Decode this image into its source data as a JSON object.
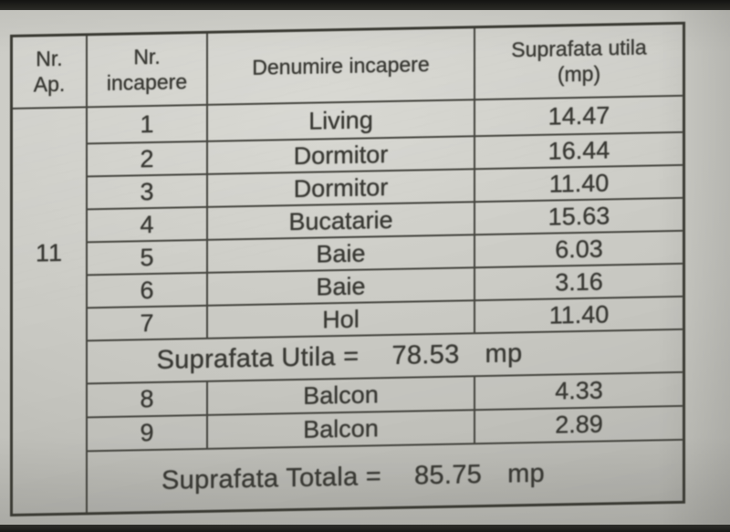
{
  "palette": {
    "paper": "#c9c9c3",
    "ink": "#3a3a35",
    "table_line": "#45453f",
    "photo_edge": "#1d1d1b"
  },
  "table": {
    "apartment_number": "11",
    "headers": {
      "nr_ap": "Nr.\nAp.",
      "nr_incapere": "Nr.\nincapere",
      "denumire": "Denumire incapere",
      "suprafata": "Suprafata utila\n(mp)"
    },
    "rooms": [
      {
        "nr": "1",
        "name": "Living",
        "area": "14.47"
      },
      {
        "nr": "2",
        "name": "Dormitor",
        "area": "16.44"
      },
      {
        "nr": "3",
        "name": "Dormitor",
        "area": "11.40"
      },
      {
        "nr": "4",
        "name": "Bucatarie",
        "area": "15.63"
      },
      {
        "nr": "5",
        "name": "Baie",
        "area": "6.03"
      },
      {
        "nr": "6",
        "name": "Baie",
        "area": "3.16"
      },
      {
        "nr": "7",
        "name": "Hol",
        "area": "11.40"
      },
      {
        "nr": "8",
        "name": "Balcon",
        "area": "4.33"
      },
      {
        "nr": "9",
        "name": "Balcon",
        "area": "2.89"
      }
    ],
    "suprafata_utila": {
      "label": "Suprafata Utila =",
      "value": "78.53",
      "unit": "mp"
    },
    "suprafata_totala": {
      "label": "Suprafata Totala =",
      "value": "85.75",
      "unit": "mp"
    }
  }
}
